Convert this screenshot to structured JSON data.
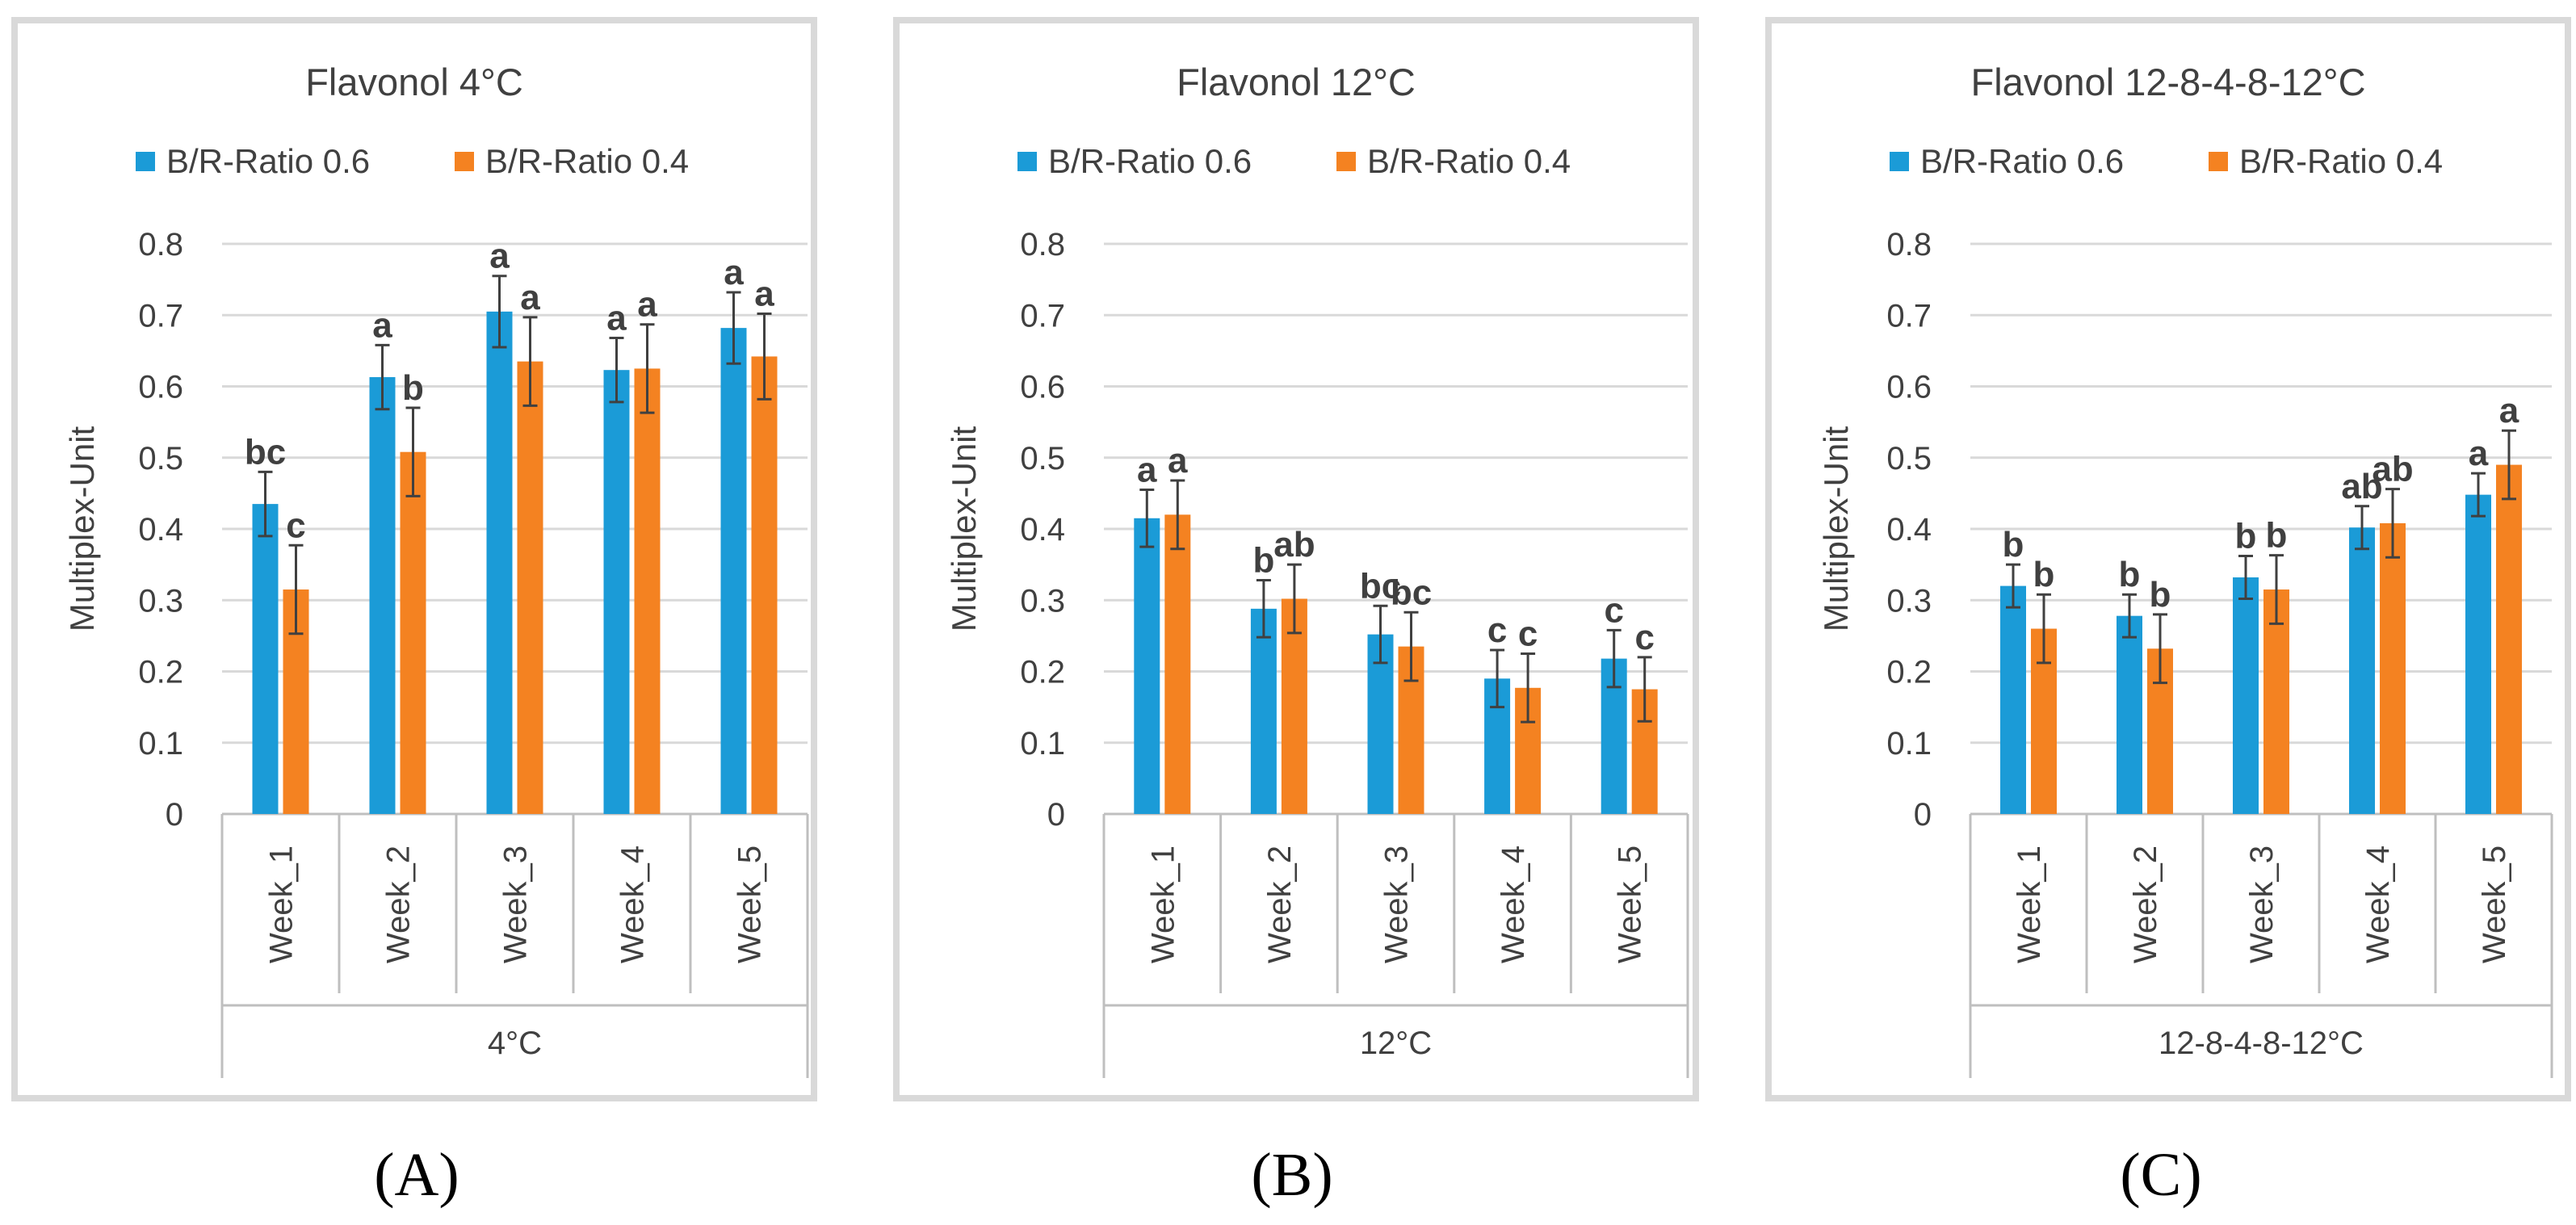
{
  "figure": {
    "panel_labels": [
      "(A)",
      "(B)",
      "(C)"
    ]
  },
  "chart_data": [
    {
      "type": "bar",
      "title": "Flavonol 4°C",
      "ylabel": "Multiplex-Unit",
      "xlabel": "4°C",
      "ylim": [
        0,
        0.8
      ],
      "yticks": [
        "0",
        "0.1",
        "0.2",
        "0.3",
        "0.4",
        "0.5",
        "0.6",
        "0.7",
        "0.8"
      ],
      "categories": [
        "Week_1",
        "Week_2",
        "Week_3",
        "Week_4",
        "Week_5"
      ],
      "series": [
        {
          "name": "B/R-Ratio 0.6",
          "color": "#1b9bd7",
          "values": [
            0.435,
            0.613,
            0.705,
            0.623,
            0.682
          ],
          "errors": [
            0.045,
            0.045,
            0.05,
            0.045,
            0.05
          ],
          "letters": [
            "bc",
            "a",
            "a",
            "a",
            "a"
          ]
        },
        {
          "name": "B/R-Ratio 0.4",
          "color": "#f48221",
          "values": [
            0.315,
            0.508,
            0.635,
            0.625,
            0.642
          ],
          "errors": [
            0.062,
            0.062,
            0.062,
            0.062,
            0.06
          ],
          "letters": [
            "c",
            "b",
            "a",
            "a",
            "a"
          ]
        }
      ]
    },
    {
      "type": "bar",
      "title": "Flavonol 12°C",
      "ylabel": "Multiplex-Unit",
      "xlabel": "12°C",
      "ylim": [
        0,
        0.8
      ],
      "yticks": [
        "0",
        "0.1",
        "0.2",
        "0.3",
        "0.4",
        "0.5",
        "0.6",
        "0.7",
        "0.8"
      ],
      "categories": [
        "Week_1",
        "Week_2",
        "Week_3",
        "Week_4",
        "Week_5"
      ],
      "series": [
        {
          "name": "B/R-Ratio 0.6",
          "color": "#1b9bd7",
          "values": [
            0.415,
            0.288,
            0.252,
            0.19,
            0.218
          ],
          "errors": [
            0.04,
            0.04,
            0.04,
            0.04,
            0.04
          ],
          "letters": [
            "a",
            "b",
            "bc",
            "c",
            "c"
          ]
        },
        {
          "name": "B/R-Ratio 0.4",
          "color": "#f48221",
          "values": [
            0.42,
            0.302,
            0.235,
            0.177,
            0.175
          ],
          "errors": [
            0.048,
            0.048,
            0.048,
            0.048,
            0.045
          ],
          "letters": [
            "a",
            "ab",
            "bc",
            "c",
            "c"
          ]
        }
      ]
    },
    {
      "type": "bar",
      "title": "Flavonol 12-8-4-8-12°C",
      "ylabel": "Multiplex-Unit",
      "xlabel": "12-8-4-8-12°C",
      "ylim": [
        0,
        0.8
      ],
      "yticks": [
        "0",
        "0.1",
        "0.2",
        "0.3",
        "0.4",
        "0.5",
        "0.6",
        "0.7",
        "0.8"
      ],
      "categories": [
        "Week_1",
        "Week_2",
        "Week_3",
        "Week_4",
        "Week_5"
      ],
      "series": [
        {
          "name": "B/R-Ratio 0.6",
          "color": "#1b9bd7",
          "values": [
            0.32,
            0.278,
            0.332,
            0.402,
            0.448
          ],
          "errors": [
            0.03,
            0.03,
            0.03,
            0.03,
            0.03
          ],
          "letters": [
            "b",
            "b",
            "b",
            "ab",
            "a"
          ]
        },
        {
          "name": "B/R-Ratio 0.4",
          "color": "#f48221",
          "values": [
            0.26,
            0.232,
            0.315,
            0.408,
            0.49
          ],
          "errors": [
            0.048,
            0.048,
            0.048,
            0.048,
            0.048
          ],
          "letters": [
            "b",
            "b",
            "b",
            "ab",
            "a"
          ]
        }
      ]
    }
  ]
}
